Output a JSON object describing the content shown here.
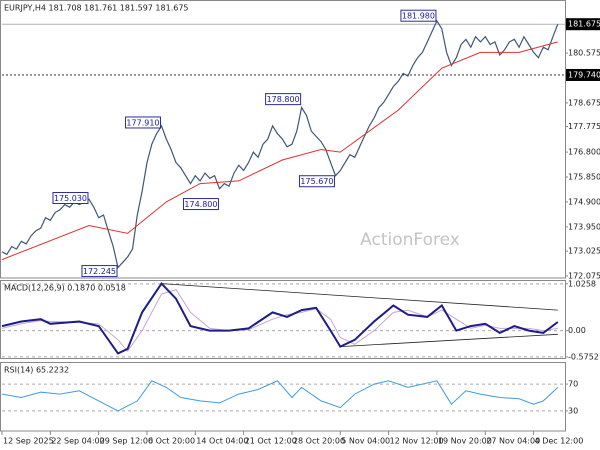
{
  "chart_data": [
    {
      "type": "line",
      "title": "EURJPY,H4 181.708 181.761 181.597 181.675",
      "color": "#3f5775",
      "xlim": [
        0,
        116.5
      ],
      "ylim": [
        172.0,
        182.56
      ],
      "yticks": [
        {
          "value": 172.075,
          "label": "172.075"
        },
        {
          "value": 173.025,
          "label": "173.025"
        },
        {
          "value": 173.95,
          "label": "173.950"
        },
        {
          "value": 174.9,
          "label": "174.900"
        },
        {
          "value": 175.85,
          "label": "175.850"
        },
        {
          "value": 176.8,
          "label": "176.800"
        },
        177.775,
        178.675,
        180.575
      ],
      "current_price": 181.675,
      "level": {
        "value": 179.74,
        "label": "179.740"
      },
      "values": [
        173.0,
        172.9,
        173.2,
        173.1,
        173.4,
        173.3,
        173.6,
        173.8,
        173.9,
        174.3,
        174.2,
        174.5,
        174.6,
        174.8,
        174.7,
        174.9,
        174.8,
        174.9,
        175.0,
        174.7,
        174.3,
        174.4,
        173.8,
        173.2,
        172.4,
        172.6,
        172.8,
        173.1,
        174.4,
        175.3,
        176.4,
        177.1,
        177.5,
        177.8,
        177.3,
        176.9,
        176.4,
        176.2,
        175.9,
        175.6,
        175.9,
        175.7,
        176.0,
        175.8,
        175.9,
        175.4,
        175.6,
        175.5,
        176.0,
        176.3,
        176.1,
        176.4,
        176.8,
        176.6,
        177.1,
        177.3,
        177.8,
        177.5,
        177.3,
        177.0,
        177.1,
        177.6,
        178.5,
        178.2,
        177.6,
        177.4,
        177.2,
        176.9,
        176.4,
        175.9,
        176.1,
        176.4,
        176.7,
        176.6,
        177.0,
        177.4,
        177.8,
        178.1,
        178.5,
        178.7,
        179.0,
        179.3,
        179.5,
        179.8,
        179.7,
        180.1,
        180.4,
        180.6,
        181.0,
        181.4,
        181.8,
        181.5,
        180.6,
        180.1,
        180.4,
        180.9,
        181.1,
        180.8,
        181.2,
        181.0,
        181.2,
        180.9,
        181.0,
        180.5,
        180.7,
        181.0,
        181.1,
        180.8,
        181.2,
        180.9,
        180.6,
        180.4,
        180.8,
        180.7,
        181.2,
        181.675
      ],
      "ma": {
        "color": "#e03030",
        "x": [
          0,
          18,
          26,
          34,
          41,
          49,
          58,
          66,
          70,
          82,
          91,
          99,
          107,
          115
        ],
        "values": [
          172.7,
          174.0,
          173.7,
          174.9,
          175.6,
          175.7,
          176.5,
          176.9,
          176.8,
          178.4,
          180.0,
          180.6,
          180.6,
          181.0
        ]
      },
      "annotations": [
        {
          "x": 90,
          "price": {
            "value": 181.98,
            "label": "181.980"
          }
        },
        {
          "x": 62,
          "price": {
            "value": 178.8,
            "label": "178.800"
          }
        },
        {
          "x": 33,
          "price": {
            "value": 177.91,
            "label": "177.910"
          }
        },
        {
          "x": 69,
          "price": {
            "value": 175.67,
            "label": "175.670"
          }
        },
        {
          "x": 18,
          "price": {
            "value": 175.03,
            "label": "175.030"
          }
        },
        {
          "x": 45,
          "price": {
            "value": 174.8,
            "label": "174.800"
          }
        },
        {
          "x": 24,
          "price": {
            "value": 172.245,
            "label": "172.245"
          }
        }
      ],
      "watermark": "ActionForex"
    },
    {
      "type": "line",
      "title": "MACD(12,26,9) 0.1870 0.0518",
      "xlim": [
        0,
        116.5
      ],
      "ylim": [
        -0.6,
        1.11
      ],
      "yticks": [
        1.0258,
        {
          "value": 0,
          "label": "0.00"
        },
        -0.5752
      ],
      "series": [
        {
          "name": "MACD",
          "color": "#1c1c8a",
          "x": [
            0,
            4,
            8,
            10,
            16,
            20,
            24,
            26,
            29,
            33,
            36,
            39,
            43,
            47,
            51,
            56,
            59,
            62,
            65,
            68,
            70,
            73,
            77,
            81,
            84,
            88,
            91,
            94,
            97,
            100,
            103,
            106,
            109,
            112,
            115
          ],
          "values": [
            0.1,
            0.2,
            0.25,
            0.15,
            0.2,
            0.1,
            -0.5,
            -0.4,
            0.4,
            1.03,
            0.7,
            0.1,
            0.0,
            0.0,
            0.05,
            0.4,
            0.3,
            0.45,
            0.5,
            0.0,
            -0.35,
            -0.2,
            0.2,
            0.55,
            0.35,
            0.3,
            0.55,
            0.0,
            0.1,
            0.15,
            -0.05,
            0.1,
            0.0,
            -0.05,
            0.19
          ]
        },
        {
          "name": "Signal",
          "color": "#c9a3d9",
          "x": [
            0,
            4,
            8,
            10,
            16,
            20,
            24,
            26,
            29,
            33,
            36,
            39,
            43,
            47,
            51,
            56,
            59,
            62,
            65,
            68,
            70,
            73,
            77,
            81,
            84,
            88,
            91,
            94,
            97,
            100,
            103,
            106,
            109,
            112,
            115
          ],
          "values": [
            0.05,
            0.15,
            0.22,
            0.2,
            0.18,
            0.15,
            -0.2,
            -0.45,
            0.0,
            0.8,
            0.9,
            0.4,
            0.05,
            0.0,
            0.02,
            0.25,
            0.35,
            0.4,
            0.48,
            0.25,
            -0.15,
            -0.3,
            0.0,
            0.4,
            0.45,
            0.3,
            0.45,
            0.25,
            0.05,
            0.12,
            0.05,
            0.05,
            0.05,
            0.0,
            0.05
          ]
        }
      ],
      "trendlines": [
        {
          "x": [
            33,
            115
          ],
          "values": [
            1.03,
            0.45
          ]
        },
        {
          "x": [
            70,
            115
          ],
          "values": [
            -0.35,
            -0.08
          ]
        }
      ]
    },
    {
      "type": "line",
      "title": "RSI(14) 65.2232",
      "xlim": [
        0,
        116.5
      ],
      "ylim": [
        0,
        100
      ],
      "yticks": [
        70,
        30
      ],
      "series": [
        {
          "name": "RSI",
          "color": "#3d9be0",
          "x": [
            0,
            4,
            8,
            12,
            16,
            20,
            24,
            28,
            31,
            34,
            37,
            41,
            45,
            49,
            53,
            57,
            60,
            62,
            66,
            70,
            73,
            77,
            80,
            84,
            90,
            93,
            96,
            99,
            103,
            107,
            110,
            112,
            115
          ],
          "values": [
            55,
            50,
            58,
            55,
            60,
            45,
            30,
            45,
            75,
            65,
            50,
            45,
            42,
            55,
            62,
            75,
            50,
            65,
            45,
            35,
            55,
            70,
            75,
            65,
            75,
            40,
            60,
            55,
            50,
            48,
            40,
            45,
            65
          ]
        }
      ],
      "xticks": [
        {
          "value": 0,
          "label": "12 Sep 2025"
        },
        {
          "value": 10,
          "label": "22 Sep 04:00"
        },
        {
          "value": 20,
          "label": "29 Sep 12:00"
        },
        {
          "value": 30,
          "label": "6 Oct 20:00"
        },
        {
          "value": 40,
          "label": "14 Oct 04:00"
        },
        {
          "value": 50,
          "label": "21 Oct 12:00"
        },
        {
          "value": 60,
          "label": "28 Oct 20:00"
        },
        {
          "value": 70,
          "label": "5 Nov 04:00"
        },
        {
          "value": 80,
          "label": "12 Nov 12:00"
        },
        {
          "value": 90,
          "label": "19 Nov 20:00"
        },
        {
          "value": 100,
          "label": "27 Nov 04:00"
        },
        {
          "value": 110,
          "label": "4 Dec 12:00"
        }
      ]
    }
  ]
}
